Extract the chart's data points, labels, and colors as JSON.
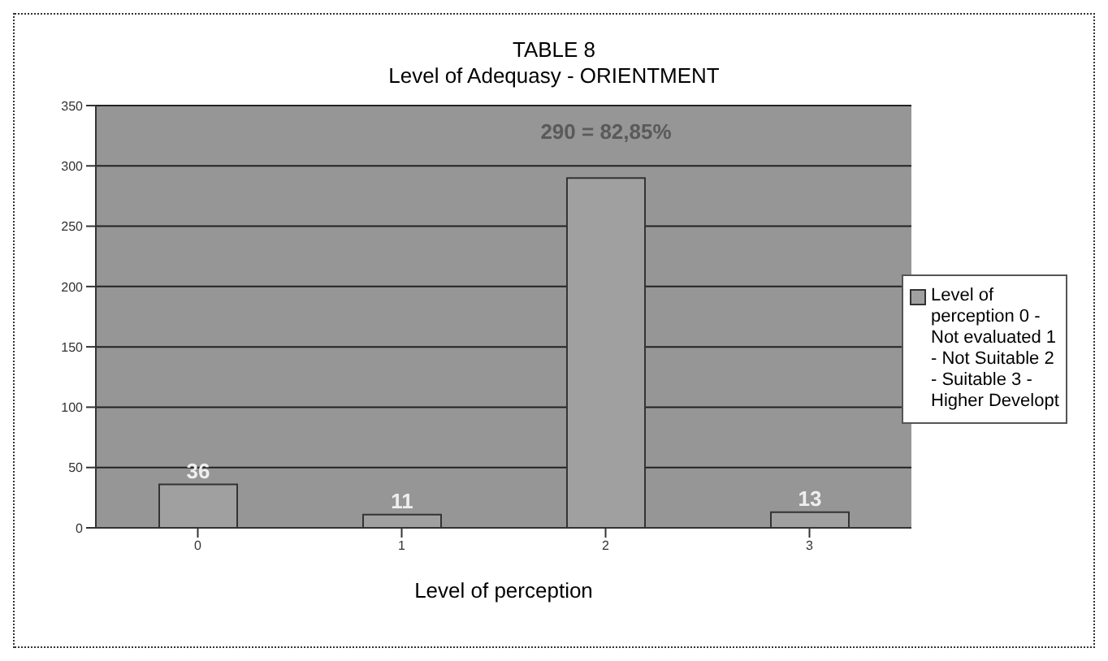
{
  "chart_data": {
    "type": "bar",
    "title": "TABLE 8",
    "subtitle": "Level of Adequasy - ORIENTMENT",
    "xlabel": "Level of perception",
    "categories": [
      "0",
      "1",
      "2",
      "3"
    ],
    "series": [
      {
        "name": "Level of perception 0 - Not evaluated 1 - Not Suitable 2 - Suitable 3 - Higher Developt",
        "color": "#a0a0a0",
        "values": [
          36,
          11,
          290,
          13
        ],
        "value_labels": [
          "36",
          "11",
          "290 = 82,85%",
          "13"
        ]
      }
    ],
    "ylim": [
      0,
      350
    ],
    "yticks": [
      0,
      50,
      100,
      150,
      200,
      250,
      300,
      350
    ],
    "grid": "y",
    "legend": "right"
  }
}
